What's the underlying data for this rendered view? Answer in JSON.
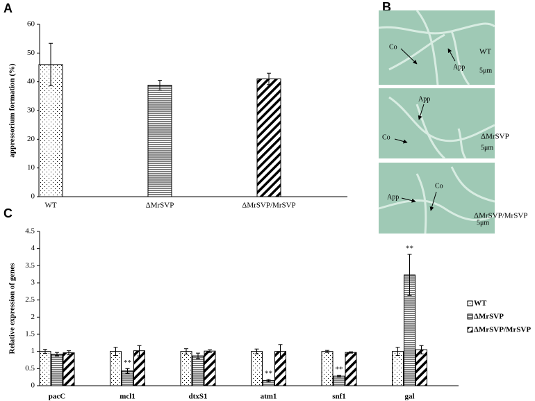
{
  "panel_labels": [
    "A",
    "B",
    "C"
  ],
  "chart_data": [
    {
      "type": "bar",
      "ylabel": "appressorium formation (%)",
      "categories": [
        "WT",
        "ΔMrSVP",
        "ΔMrSVP/MrSVP"
      ],
      "values": [
        46,
        38.8,
        41
      ],
      "errors": [
        7.4,
        1.7,
        2
      ],
      "patterns": [
        "dots",
        "hlines",
        "diag"
      ],
      "color": "#000000",
      "ylim": [
        0,
        60
      ],
      "yticks": [
        0,
        10,
        20,
        30,
        40,
        50,
        60
      ]
    },
    {
      "type": "grouped_bar",
      "ylabel": "Relative expression of genes",
      "categories": [
        "pacC",
        "mcl1",
        "dtxS1",
        "atm1",
        "snf1",
        "gal"
      ],
      "series": [
        {
          "name": "WT",
          "pattern": "dots",
          "color": "#000000",
          "values": [
            1,
            1,
            1,
            1,
            1,
            1
          ],
          "errors": [
            0.06,
            0.12,
            0.08,
            0.07,
            0.03,
            0.12
          ]
        },
        {
          "name": "ΔMrSVP",
          "pattern": "hlines",
          "color": "#000000",
          "values": [
            0.92,
            0.43,
            0.87,
            0.15,
            0.28,
            3.23
          ],
          "errors": [
            0.05,
            0.07,
            0.08,
            0.03,
            0.02,
            0.6
          ],
          "significance": [
            null,
            "**",
            null,
            "**",
            "**",
            "**"
          ]
        },
        {
          "name": "ΔMrSVP/MrSVP",
          "pattern": "diag",
          "color": "#000000",
          "values": [
            0.96,
            1.02,
            1.01,
            1.0,
            0.97,
            1.05
          ],
          "errors": [
            0.06,
            0.15,
            0.04,
            0.2,
            0.02,
            0.12
          ]
        }
      ],
      "ylim": [
        0,
        4.5
      ],
      "yticks": [
        0,
        0.5,
        1,
        1.5,
        2,
        2.5,
        3,
        3.5,
        4,
        4.5
      ],
      "legend": "right"
    }
  ],
  "panel_b": {
    "images": [
      {
        "caption": "WT",
        "annotations": [
          "Co",
          "App"
        ],
        "scale": "5μm"
      },
      {
        "caption": "ΔMrSVP",
        "annotations": [
          "App",
          "Co"
        ],
        "scale": "5μm"
      },
      {
        "caption": "ΔMrSVP/MrSVP",
        "annotations": [
          "App",
          "Co"
        ],
        "scale": "5μm"
      }
    ]
  }
}
